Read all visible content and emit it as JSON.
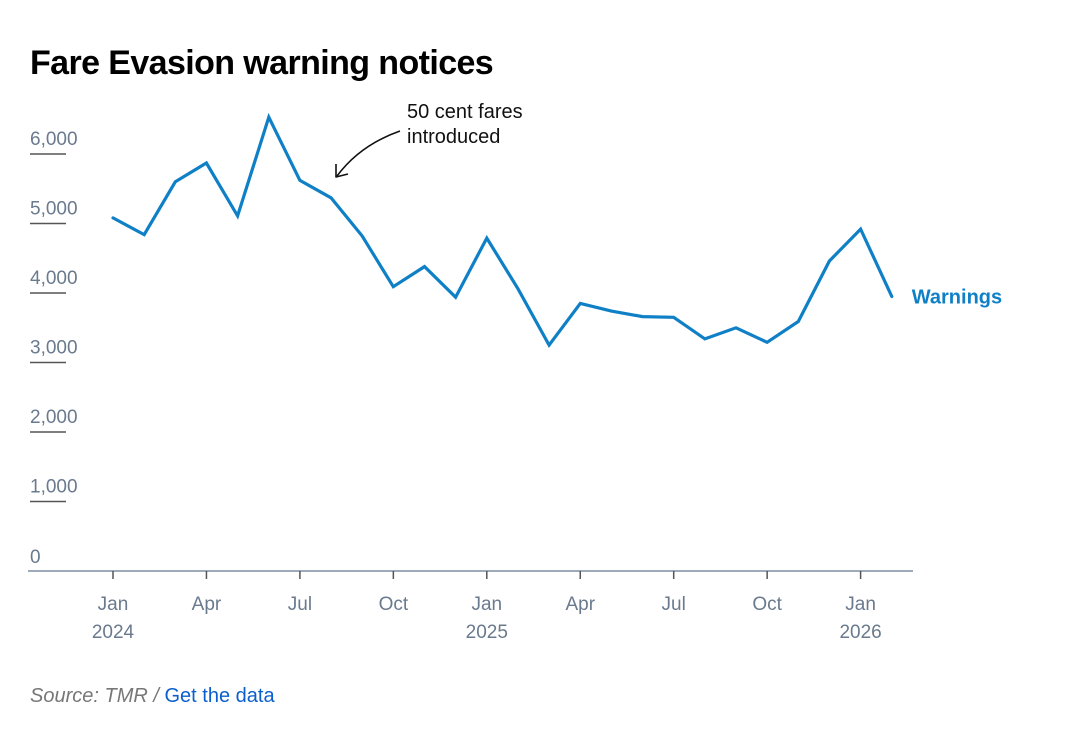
{
  "chart_data": {
    "type": "line",
    "title": "Fare Evasion warning notices",
    "xlabel": "",
    "ylabel": "",
    "ylim": [
      0,
      6500
    ],
    "yticks": [
      0,
      1000,
      2000,
      3000,
      4000,
      5000,
      6000
    ],
    "ytick_labels": [
      "0",
      "1,000",
      "2,000",
      "3,000",
      "4,000",
      "5,000",
      "6,000"
    ],
    "xtick_labels": [
      {
        "month_index": 0,
        "line1": "Jan",
        "line2": "2024"
      },
      {
        "month_index": 3,
        "line1": "Apr",
        "line2": ""
      },
      {
        "month_index": 6,
        "line1": "Jul",
        "line2": ""
      },
      {
        "month_index": 9,
        "line1": "Oct",
        "line2": ""
      },
      {
        "month_index": 12,
        "line1": "Jan",
        "line2": "2025"
      },
      {
        "month_index": 15,
        "line1": "Apr",
        "line2": ""
      },
      {
        "month_index": 18,
        "line1": "Jul",
        "line2": ""
      },
      {
        "month_index": 21,
        "line1": "Oct",
        "line2": ""
      },
      {
        "month_index": 24,
        "line1": "Jan",
        "line2": "2026"
      }
    ],
    "x": [
      "2024-01",
      "2024-02",
      "2024-03",
      "2024-04",
      "2024-05",
      "2024-06",
      "2024-07",
      "2024-08",
      "2024-09",
      "2024-10",
      "2024-11",
      "2024-12",
      "2025-01",
      "2025-02",
      "2025-03",
      "2025-04",
      "2025-05",
      "2025-06",
      "2025-07",
      "2025-08",
      "2025-09",
      "2025-10",
      "2025-11",
      "2025-12",
      "2026-01",
      "2026-02"
    ],
    "series": [
      {
        "name": "Warnings",
        "color": "#0f80c6",
        "values": [
          5080,
          4840,
          5600,
          5870,
          5110,
          6530,
          5620,
          5370,
          4820,
          4090,
          4380,
          3940,
          4790,
          4060,
          3250,
          3850,
          3740,
          3660,
          3650,
          3340,
          3500,
          3290,
          3590,
          4460,
          4920,
          3950
        ]
      }
    ],
    "grid": false,
    "legend": "direct-label-right",
    "annotations": [
      {
        "text_lines": [
          "50 cent fares",
          "introduced"
        ],
        "points_to": "2024-08"
      }
    ]
  },
  "source": {
    "text": "Source: TMR /",
    "link_label": "Get the data"
  },
  "colors": {
    "series": "#0f80c6",
    "axis": "#7d8ea3",
    "tick_text": "#6a7a8e",
    "link": "#0b5fcc"
  }
}
